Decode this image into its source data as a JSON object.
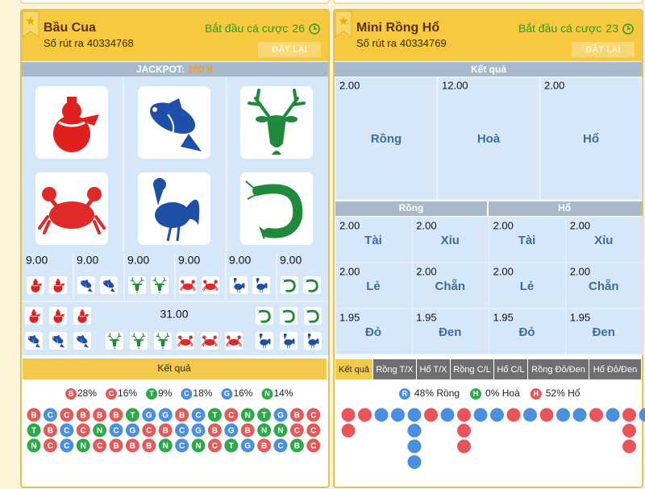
{
  "left": {
    "title": "Bầu Cua",
    "countdown_label": "Bắt đầu cá cược",
    "countdown": 26,
    "draw_label": "Số rút ra",
    "draw_id": "40334768",
    "reset": "ĐẶT LẠI",
    "jackpot_label": "JACKPOT:",
    "jackpot": "200 K",
    "odds": [
      "9.00",
      "9.00",
      "9.00",
      "9.00",
      "9.00",
      "9.00"
    ],
    "total": "31.00",
    "results_tab": "Kết quả",
    "palette": {
      "red": "#e25b5b",
      "blue": "#4a8fe0",
      "green": "#2ea84a"
    },
    "stats": [
      {
        "label": "B",
        "value": "28%",
        "color": "red"
      },
      {
        "label": "C",
        "value": "16%",
        "color": "red"
      },
      {
        "label": "T",
        "value": "9%",
        "color": "green"
      },
      {
        "label": "C",
        "value": "18%",
        "color": "blue"
      },
      {
        "label": "G",
        "value": "16%",
        "color": "blue"
      },
      {
        "label": "N",
        "value": "14%",
        "color": "green"
      }
    ],
    "history": [
      {
        "labels": [
          "B",
          "C",
          "C",
          "B",
          "B",
          "B",
          "T",
          "G",
          "G",
          "B",
          "C",
          "T",
          "C",
          "N",
          "T",
          "G",
          "B",
          "C"
        ],
        "colors": [
          "red",
          "blue",
          "red",
          "red",
          "red",
          "red",
          "green",
          "blue",
          "blue",
          "red",
          "blue",
          "green",
          "red",
          "green",
          "green",
          "blue",
          "red",
          "red"
        ]
      },
      {
        "labels": [
          "T",
          "B",
          "C",
          "C",
          "N",
          "C",
          "G",
          "C",
          "B",
          "C",
          "G",
          "B",
          "G",
          "B",
          "N",
          "N",
          "C",
          "C"
        ],
        "colors": [
          "green",
          "red",
          "blue",
          "red",
          "green",
          "blue",
          "blue",
          "red",
          "red",
          "blue",
          "blue",
          "red",
          "blue",
          "red",
          "green",
          "green",
          "red",
          "red"
        ]
      },
      {
        "labels": [
          "N",
          "C",
          "C",
          "N",
          "C",
          "B",
          "B",
          "B",
          "N",
          "C",
          "N",
          "C",
          "T",
          "G",
          "B",
          "C",
          "B",
          "C"
        ],
        "colors": [
          "green",
          "red",
          "blue",
          "green",
          "red",
          "red",
          "red",
          "red",
          "green",
          "blue",
          "green",
          "red",
          "green",
          "blue",
          "red",
          "blue",
          "green",
          "red"
        ]
      }
    ]
  },
  "right": {
    "title": "Mini Rồng Hổ",
    "countdown_label": "Bắt đầu cá cược",
    "countdown": 23,
    "draw_label": "Số rút ra",
    "draw_id": "40334769",
    "reset": "ĐẶT LẠI",
    "result_header": "Kết quả",
    "main": [
      {
        "odds": "2.00",
        "label": "Rồng"
      },
      {
        "odds": "12.00",
        "label": "Hoà"
      },
      {
        "odds": "2.00",
        "label": "Hổ"
      }
    ],
    "sides": [
      "Rồng",
      "Hổ"
    ],
    "bets": [
      [
        {
          "odds": "2.00",
          "label": "Tài"
        },
        {
          "odds": "2.00",
          "label": "Xỉu"
        },
        {
          "odds": "2.00",
          "label": "Tài"
        },
        {
          "odds": "2.00",
          "label": "Xỉu"
        }
      ],
      [
        {
          "odds": "2.00",
          "label": "Lẻ"
        },
        {
          "odds": "2.00",
          "label": "Chẵn"
        },
        {
          "odds": "2.00",
          "label": "Lẻ"
        },
        {
          "odds": "2.00",
          "label": "Chẵn"
        }
      ],
      [
        {
          "odds": "1.95",
          "label": "Đỏ"
        },
        {
          "odds": "1.95",
          "label": "Đen"
        },
        {
          "odds": "1.95",
          "label": "Đỏ"
        },
        {
          "odds": "1.95",
          "label": "Đen"
        }
      ]
    ],
    "tabs": [
      "Kết quả",
      "Rồng T/X",
      "Hổ T/X",
      "Rồng C/L",
      "Hổ C/L",
      "Rồng Đỏ/Đen",
      "Hổ Đỏ/Đen"
    ],
    "palette": {
      "red": "#e8545a",
      "blue": "#4a8fe0",
      "green": "#2ea84a"
    },
    "stats": [
      {
        "label": "R",
        "value": "48% Rồng",
        "color": "blue"
      },
      {
        "label": "H",
        "value": "0% Hoà",
        "color": "green"
      },
      {
        "label": "H",
        "value": "52% Hổ",
        "color": "red"
      }
    ],
    "bead_road": [
      [
        "red",
        "red"
      ],
      [
        "red"
      ],
      [
        "blue"
      ],
      [
        "blue"
      ],
      [
        "blue",
        "blue",
        "blue",
        "blue"
      ],
      [
        "red"
      ],
      [
        "blue"
      ],
      [
        "red",
        "red",
        "red"
      ],
      [
        "blue"
      ],
      [
        "blue"
      ],
      [
        "red"
      ],
      [
        "blue"
      ],
      [
        "red"
      ],
      [
        "blue"
      ],
      [
        "blue"
      ],
      [
        "red"
      ],
      [
        "blue"
      ],
      [
        "red",
        "red",
        "red"
      ],
      [
        "blue"
      ]
    ]
  }
}
